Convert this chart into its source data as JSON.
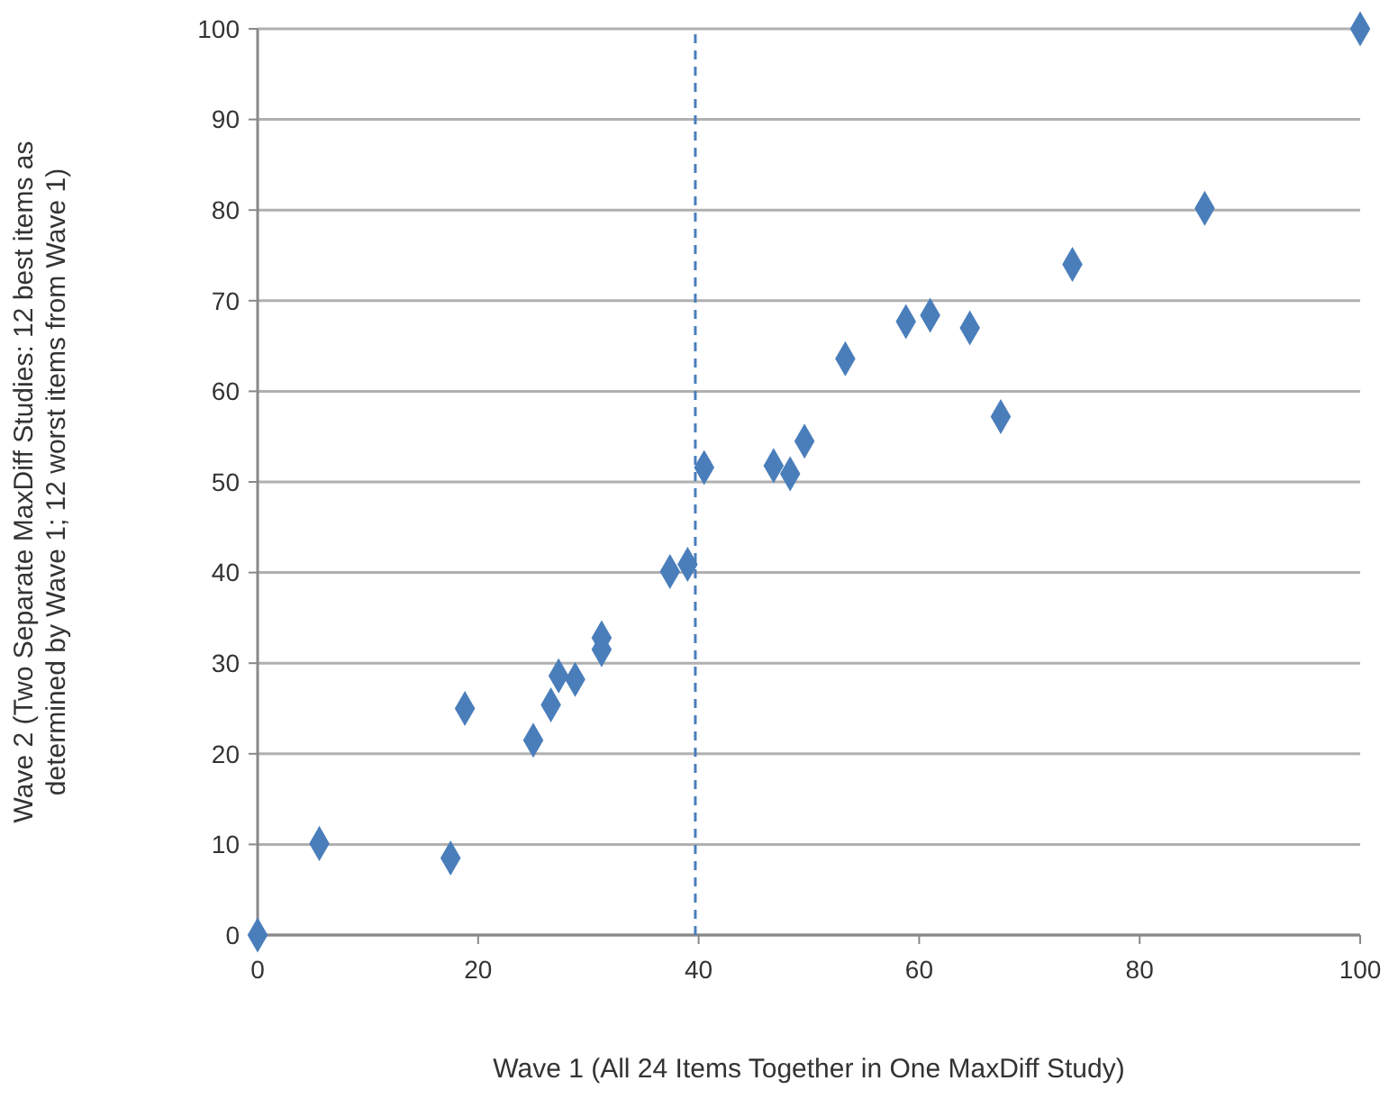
{
  "chart_data": {
    "type": "scatter",
    "xlabel": "Wave 1 (All 24 Items Together in One MaxDiff Study)",
    "ylabel": "Wave 2 (Two Separate MaxDiff Studies: 12 best items as determined by Wave 1; 12 worst items from Wave 1)",
    "x": [
      0,
      5.6,
      17.5,
      18.8,
      25.0,
      26.6,
      27.3,
      28.8,
      31.2,
      31.2,
      37.4,
      39.0,
      40.5,
      46.8,
      48.3,
      49.6,
      53.3,
      58.8,
      61.0,
      64.6,
      67.4,
      73.9,
      85.9,
      100
    ],
    "values": [
      0,
      10.1,
      8.5,
      25.0,
      21.5,
      25.4,
      28.6,
      28.2,
      32.8,
      31.5,
      40.1,
      40.9,
      51.6,
      51.8,
      50.9,
      54.5,
      63.6,
      67.7,
      68.4,
      67.0,
      57.2,
      74.0,
      80.2,
      100
    ],
    "color": "#4a7ebb",
    "marker": "diamond",
    "xlim": [
      0,
      100
    ],
    "xticks": [
      0,
      20,
      40,
      60,
      80,
      100
    ],
    "ylim": [
      0,
      100
    ],
    "yticks": [
      0,
      10,
      20,
      30,
      40,
      50,
      60,
      70,
      80,
      90,
      100
    ],
    "grid": "y",
    "ref_lines": [
      {
        "axis": "x",
        "value": 39.7,
        "color": "#4a7ebb",
        "line_style": "dashed"
      }
    ]
  }
}
